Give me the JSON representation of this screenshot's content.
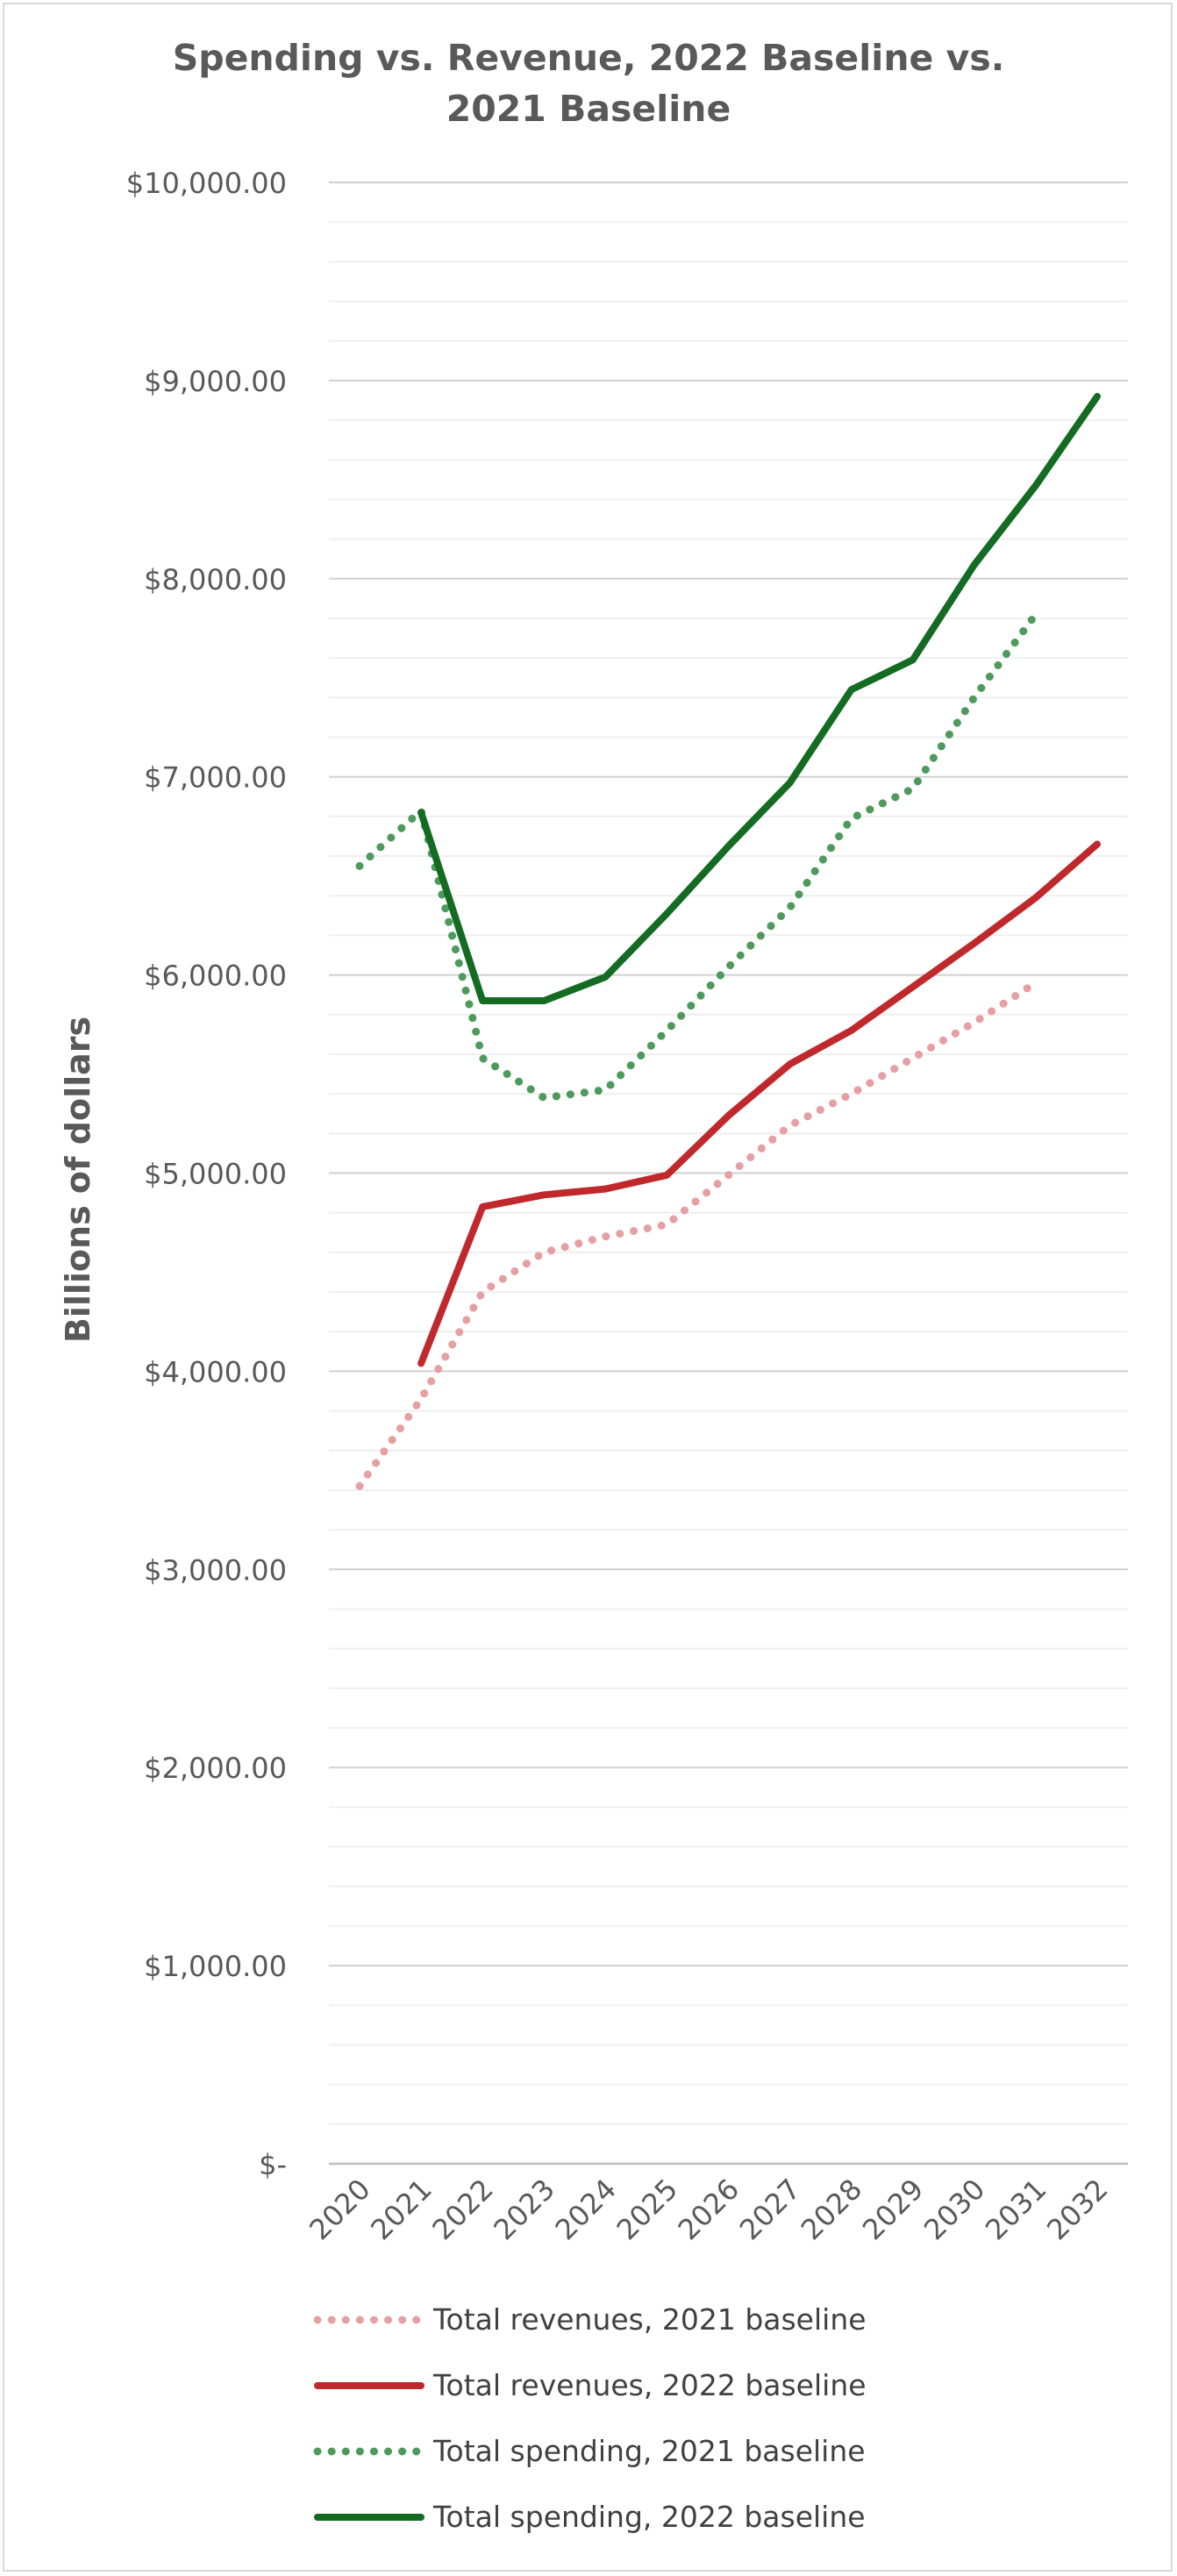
{
  "chart_data": {
    "type": "line",
    "title_lines": [
      "Spending vs. Revenue, 2022 Baseline vs.",
      "2021 Baseline"
    ],
    "ylabel": "Billions of dollars",
    "xlabel": "",
    "ylim": [
      0,
      10000
    ],
    "y_major_step": 1000,
    "y_minor_step": 200,
    "y_tick_labels": [
      "$-",
      "$1,000.00",
      "$2,000.00",
      "$3,000.00",
      "$4,000.00",
      "$5,000.00",
      "$6,000.00",
      "$7,000.00",
      "$8,000.00",
      "$9,000.00",
      "$10,000.00"
    ],
    "categories": [
      "2020",
      "2021",
      "2022",
      "2023",
      "2024",
      "2025",
      "2026",
      "2027",
      "2028",
      "2029",
      "2030",
      "2031",
      "2032"
    ],
    "grid": true,
    "legend_position": "bottom",
    "series": [
      {
        "name": "Total revenues, 2021 baseline",
        "style": "dotted",
        "color": "#e6a0a4",
        "values": [
          3420,
          3860,
          4400,
          4600,
          4680,
          4740,
          4990,
          5240,
          5400,
          5580,
          5760,
          5960,
          null
        ]
      },
      {
        "name": "Total revenues, 2022 baseline",
        "style": "solid",
        "color": "#c0282c",
        "values": [
          null,
          4040,
          4830,
          4890,
          4920,
          4990,
          5290,
          5550,
          5720,
          5940,
          6160,
          6390,
          6660
        ]
      },
      {
        "name": "Total spending, 2021 baseline",
        "style": "dotted",
        "color": "#4e9a5c",
        "values": [
          6550,
          6830,
          5580,
          5380,
          5420,
          5720,
          6040,
          6340,
          6790,
          6940,
          7400,
          7820,
          null
        ]
      },
      {
        "name": "Total spending, 2022 baseline",
        "style": "solid",
        "color": "#146b22",
        "values": [
          null,
          6820,
          5870,
          5870,
          5990,
          6310,
          6650,
          6970,
          7440,
          7590,
          8070,
          8470,
          8920
        ]
      }
    ]
  }
}
